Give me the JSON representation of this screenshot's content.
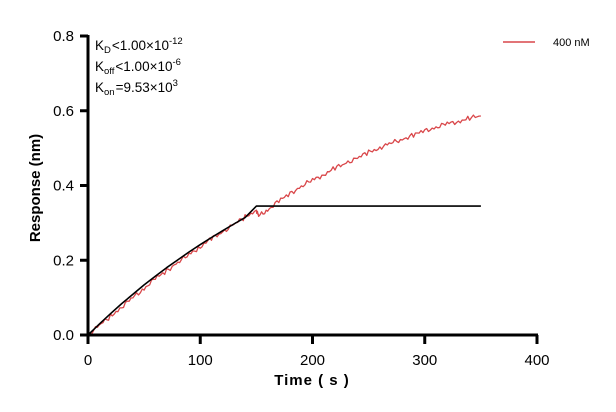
{
  "chart_data": {
    "type": "line",
    "title": "",
    "xlabel": "Time ( s )",
    "ylabel": "Response (nm)",
    "xlim": [
      0,
      400
    ],
    "ylim": [
      0,
      0.8
    ],
    "xticks": [
      0,
      100,
      200,
      300,
      400
    ],
    "yticks": [
      0.0,
      0.2,
      0.4,
      0.6,
      0.8
    ],
    "xtick_labels": [
      "0",
      "100",
      "200",
      "300",
      "400"
    ],
    "ytick_labels": [
      "0.0",
      "0.2",
      "0.4",
      "0.6",
      "0.8"
    ],
    "grid": false,
    "legend_position": "top-right",
    "legend": [
      {
        "label": "400 nM",
        "color": "#d9474a"
      }
    ],
    "annotations": {
      "kd": {
        "symbol": "K",
        "sub": "D",
        "rel": "<",
        "mantissa": "1.00×10",
        "exp": "-12"
      },
      "koff": {
        "symbol": "K",
        "sub": "off",
        "rel": "<",
        "mantissa": "1.00×10",
        "exp": "-6"
      },
      "kon": {
        "symbol": "K",
        "sub": "on",
        "rel": "=",
        "mantissa": "9.53×10",
        "exp": "3"
      }
    },
    "series": [
      {
        "name": "400 nM",
        "role": "measured",
        "color": "#d9474a",
        "x": [
          0,
          10,
          20,
          30,
          40,
          50,
          60,
          70,
          80,
          90,
          100,
          110,
          120,
          130,
          140,
          150,
          152,
          160,
          170,
          180,
          190,
          200,
          210,
          220,
          230,
          240,
          250,
          260,
          270,
          280,
          290,
          300,
          310,
          320,
          330,
          340,
          350
        ],
        "y": [
          0.0,
          0.025,
          0.05,
          0.075,
          0.1,
          0.125,
          0.15,
          0.172,
          0.194,
          0.215,
          0.237,
          0.257,
          0.276,
          0.296,
          0.315,
          0.335,
          0.318,
          0.335,
          0.358,
          0.378,
          0.398,
          0.414,
          0.43,
          0.446,
          0.46,
          0.474,
          0.488,
          0.502,
          0.513,
          0.524,
          0.535,
          0.546,
          0.556,
          0.565,
          0.572,
          0.58,
          0.586
        ]
      },
      {
        "name": "fit",
        "role": "fit",
        "color": "#000000",
        "x": [
          0,
          10,
          20,
          30,
          40,
          50,
          60,
          70,
          80,
          90,
          100,
          110,
          120,
          130,
          140,
          150,
          200,
          250,
          300,
          350
        ],
        "y": [
          0.0,
          0.029,
          0.057,
          0.084,
          0.109,
          0.134,
          0.157,
          0.18,
          0.201,
          0.222,
          0.242,
          0.261,
          0.279,
          0.297,
          0.314,
          0.345,
          0.345,
          0.345,
          0.345,
          0.345
        ]
      }
    ]
  }
}
